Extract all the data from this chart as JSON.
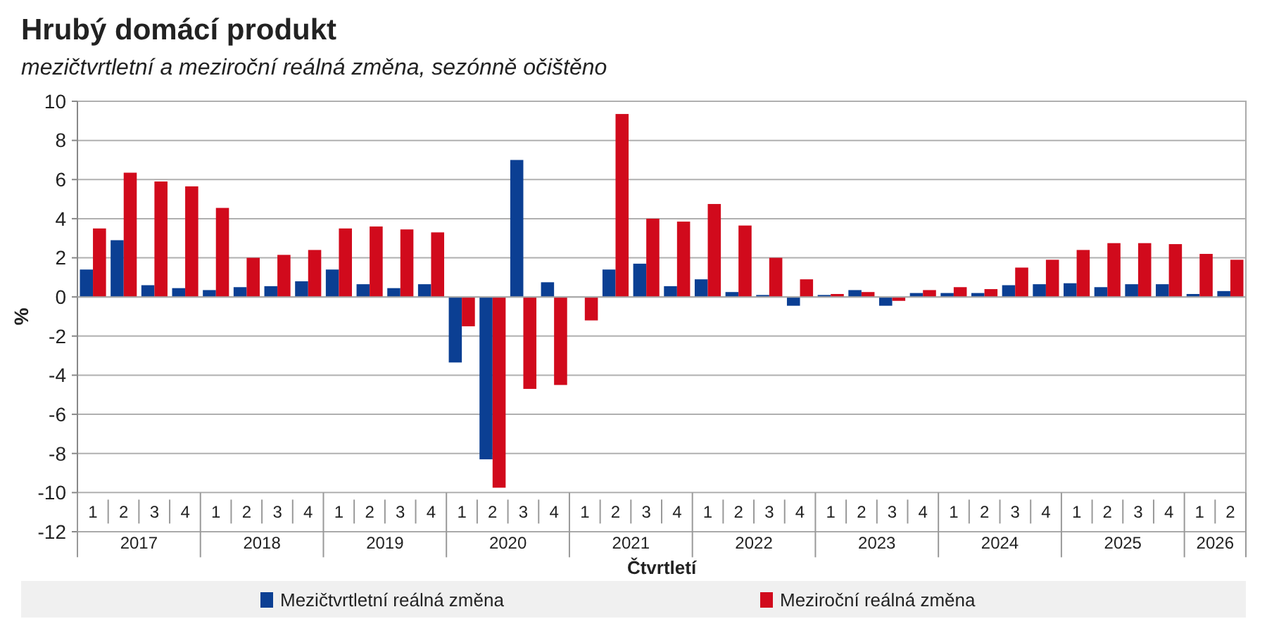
{
  "chart_data": {
    "type": "bar",
    "title": "Hrubý domácí produkt",
    "subtitle": "mezičtvrtletní a meziroční reálná změna, sezónně očištěno",
    "ylabel": "%",
    "xlabel": "Čtvrtletí",
    "categories": [
      "1",
      "2",
      "3",
      "4",
      "1",
      "2",
      "3",
      "4",
      "1",
      "2",
      "3",
      "4",
      "1",
      "2",
      "3",
      "4",
      "1",
      "2",
      "3",
      "4",
      "1",
      "2",
      "3",
      "4",
      "1",
      "2",
      "3",
      "4",
      "1",
      "2",
      "3",
      "4",
      "1",
      "2",
      "3",
      "4",
      "1",
      "2"
    ],
    "annotations": [
      "2017",
      "2018",
      "2019",
      "2020",
      "2021",
      "2022",
      "2023",
      "2024",
      "2025",
      "2026"
    ],
    "series": [
      {
        "name": "Mezičtvrtletní reálná změna",
        "color": "#0b3f93",
        "values": [
          1.4,
          2.9,
          0.6,
          0.45,
          0.35,
          0.5,
          0.55,
          0.8,
          1.4,
          0.65,
          0.45,
          0.65,
          -3.35,
          -8.3,
          7.0,
          0.75,
          0,
          1.4,
          1.7,
          0.55,
          0.9,
          0.25,
          0.1,
          -0.45,
          0.1,
          0.35,
          -0.45,
          0.2,
          0.2,
          0.2,
          0.6,
          0.65,
          0.7,
          0.5,
          0.65,
          0.65,
          0.15,
          0.3
        ]
      },
      {
        "name": "Meziroční reálná změna",
        "color": "#d10a1c",
        "values": [
          3.5,
          6.35,
          5.9,
          5.65,
          4.55,
          2.0,
          2.15,
          2.4,
          3.5,
          3.6,
          3.45,
          3.3,
          -1.5,
          -9.75,
          -4.7,
          -4.5,
          -1.2,
          9.35,
          4.0,
          3.85,
          4.75,
          3.65,
          2.0,
          0.9,
          0.15,
          0.25,
          -0.2,
          0.35,
          0.5,
          0.4,
          1.5,
          1.9,
          2.4,
          2.75,
          2.75,
          2.7,
          2.2,
          1.9
        ]
      }
    ],
    "ylim": [
      -12,
      10
    ],
    "yticks": [
      -12,
      -10,
      -8,
      -6,
      -4,
      -2,
      0,
      2,
      4,
      6,
      8,
      10
    ],
    "grid": "y",
    "legend": "bottom"
  }
}
